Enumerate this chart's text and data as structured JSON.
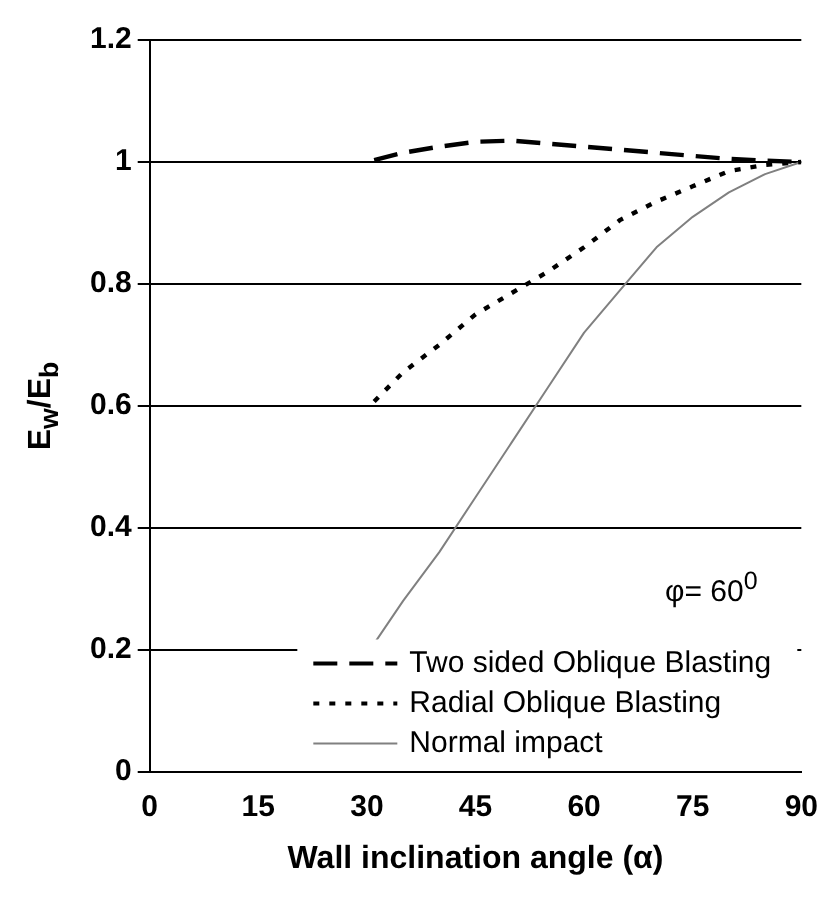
{
  "chart_data": {
    "type": "line",
    "xlabel": "Wall inclination angle (α)",
    "ylabel": "E$_{w}$/E$_{b}$",
    "xlim": [
      0,
      90
    ],
    "xticks": [
      0,
      15,
      30,
      45,
      60,
      75,
      90
    ],
    "ylim": [
      0,
      1.2
    ],
    "yticks": [
      0,
      0.2,
      0.4,
      0.6,
      0.8,
      1,
      1.2
    ],
    "grid": "y",
    "legend": "bottom right",
    "marker": "none",
    "annotations": [
      "φ= 60$^{0}$"
    ],
    "series": [
      {
        "name": "Two sided Oblique Blasting",
        "color": "#000000",
        "line_style": "dashed",
        "x": [
          31,
          35,
          40,
          45,
          50,
          55,
          60,
          65,
          70,
          75,
          80,
          85,
          90
        ],
        "values": [
          1.003,
          1.015,
          1.025,
          1.033,
          1.035,
          1.03,
          1.025,
          1.02,
          1.015,
          1.01,
          1.005,
          1.002,
          1.0
        ]
      },
      {
        "name": "Radial Oblique Blasting",
        "color": "#000000",
        "line_style": "dotted",
        "x": [
          31,
          35,
          40,
          45,
          50,
          55,
          60,
          65,
          70,
          75,
          80,
          85,
          90
        ],
        "values": [
          0.607,
          0.655,
          0.7,
          0.75,
          0.785,
          0.82,
          0.86,
          0.905,
          0.935,
          0.96,
          0.985,
          0.995,
          1.0
        ]
      },
      {
        "name": "Normal impact",
        "color": "#808080",
        "line_style": "solid",
        "x": [
          31,
          35,
          40,
          45,
          50,
          55,
          60,
          65,
          70,
          75,
          80,
          85,
          90
        ],
        "values": [
          0.21,
          0.28,
          0.36,
          0.45,
          0.54,
          0.63,
          0.72,
          0.79,
          0.86,
          0.91,
          0.95,
          0.98,
          1.0
        ]
      }
    ]
  }
}
